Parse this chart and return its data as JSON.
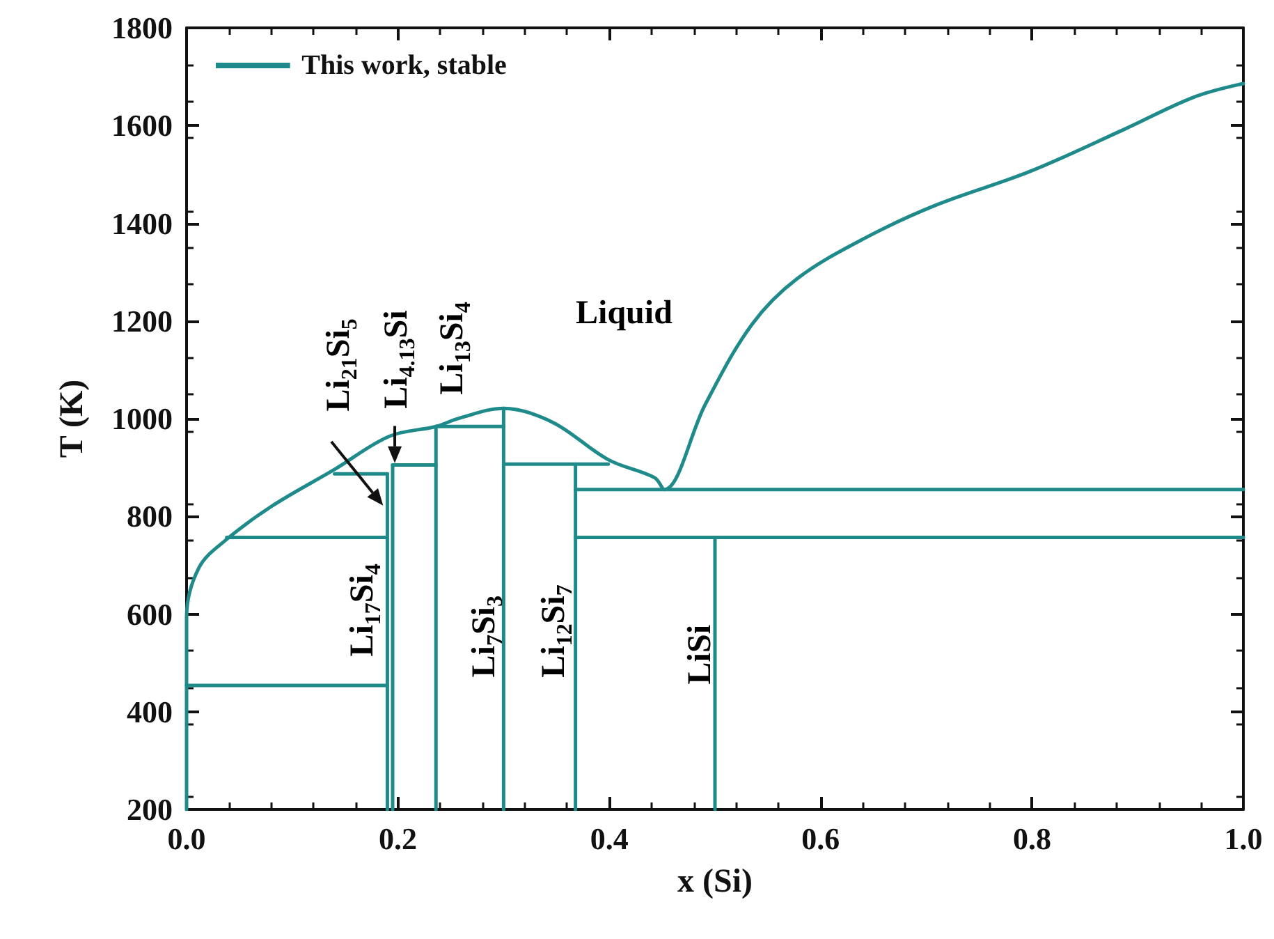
{
  "chart_data": {
    "type": "line",
    "xlabel": "x (Si)",
    "ylabel": "T (K)",
    "xlim": [
      0,
      1
    ],
    "ylim": [
      200,
      1800
    ],
    "xticks": [
      {
        "value": 0,
        "label": "0.0"
      },
      {
        "value": 0.2,
        "label": "0.2"
      },
      {
        "value": 0.4,
        "label": "0.4"
      },
      {
        "value": 0.6,
        "label": "0.6"
      },
      {
        "value": 0.8,
        "label": "0.8"
      },
      {
        "value": 1,
        "label": "1.0"
      }
    ],
    "yticks": [
      200,
      400,
      600,
      800,
      1000,
      1200,
      1400,
      1600,
      1800
    ],
    "legend": "top left",
    "grid": false,
    "marker": "none",
    "line_style": "solid",
    "series": [
      {
        "name": "This work, stable",
        "color": "#1f8a8a",
        "x": [
          0,
          0,
          0.012,
          0.038,
          0.08,
          0.14,
          0.192,
          0.236,
          0.258,
          0.3,
          0.346,
          0.399,
          0.443,
          0.452,
          0.491,
          0.535,
          0.578,
          0.644,
          0.71,
          0.798,
          0.887,
          0.953,
          1
        ],
        "values": [
          200,
          594,
          696,
          753,
          820,
          896,
          964,
          984,
          1001,
          1021,
          993,
          916,
          879,
          855,
          1030,
          1193,
          1287,
          1372,
          1438,
          1506,
          1592,
          1658,
          1686
        ]
      },
      {
        "color": "#1f8a8a",
        "x": [
          0,
          0.19
        ],
        "values": [
          454,
          454
        ]
      },
      {
        "color": "#1f8a8a",
        "x": [
          0.038,
          0.19
        ],
        "values": [
          757,
          757
        ]
      },
      {
        "color": "#1f8a8a",
        "x": [
          0.14,
          0.19
        ],
        "values": [
          887,
          887
        ]
      },
      {
        "color": "#1f8a8a",
        "x": [
          0.19,
          0.19
        ],
        "values": [
          200,
          887
        ]
      },
      {
        "color": "#1f8a8a",
        "x": [
          0.195,
          0.195
        ],
        "values": [
          200,
          905
        ]
      },
      {
        "color": "#1f8a8a",
        "x": [
          0.195,
          0.236
        ],
        "values": [
          905,
          905
        ]
      },
      {
        "color": "#1f8a8a",
        "x": [
          0.236,
          0.236
        ],
        "values": [
          200,
          984
        ]
      },
      {
        "color": "#1f8a8a",
        "x": [
          0.236,
          0.3
        ],
        "values": [
          984,
          984
        ]
      },
      {
        "color": "#1f8a8a",
        "x": [
          0.3,
          0.3
        ],
        "values": [
          200,
          1021
        ]
      },
      {
        "color": "#1f8a8a",
        "x": [
          0.3,
          0.399
        ],
        "values": [
          907,
          907
        ]
      },
      {
        "color": "#1f8a8a",
        "x": [
          0.368,
          0.368
        ],
        "values": [
          200,
          907
        ]
      },
      {
        "color": "#1f8a8a",
        "x": [
          0.368,
          1
        ],
        "values": [
          855,
          855
        ]
      },
      {
        "color": "#1f8a8a",
        "x": [
          0.368,
          1
        ],
        "values": [
          757,
          757
        ]
      },
      {
        "color": "#1f8a8a",
        "x": [
          0.5,
          0.5
        ],
        "values": [
          200,
          757
        ]
      }
    ],
    "annotations": [
      "Liquid",
      "Li$_{21}$Si$_{5}$",
      "Li$_{4.13}$Si",
      "Li$_{13}$Si$_{4}$",
      "Li$_{17}$Si$_{4}$",
      "Li$_{7}$Si$_{3}$",
      "Li$_{12}$Si$_{7}$",
      "LiSi"
    ]
  }
}
